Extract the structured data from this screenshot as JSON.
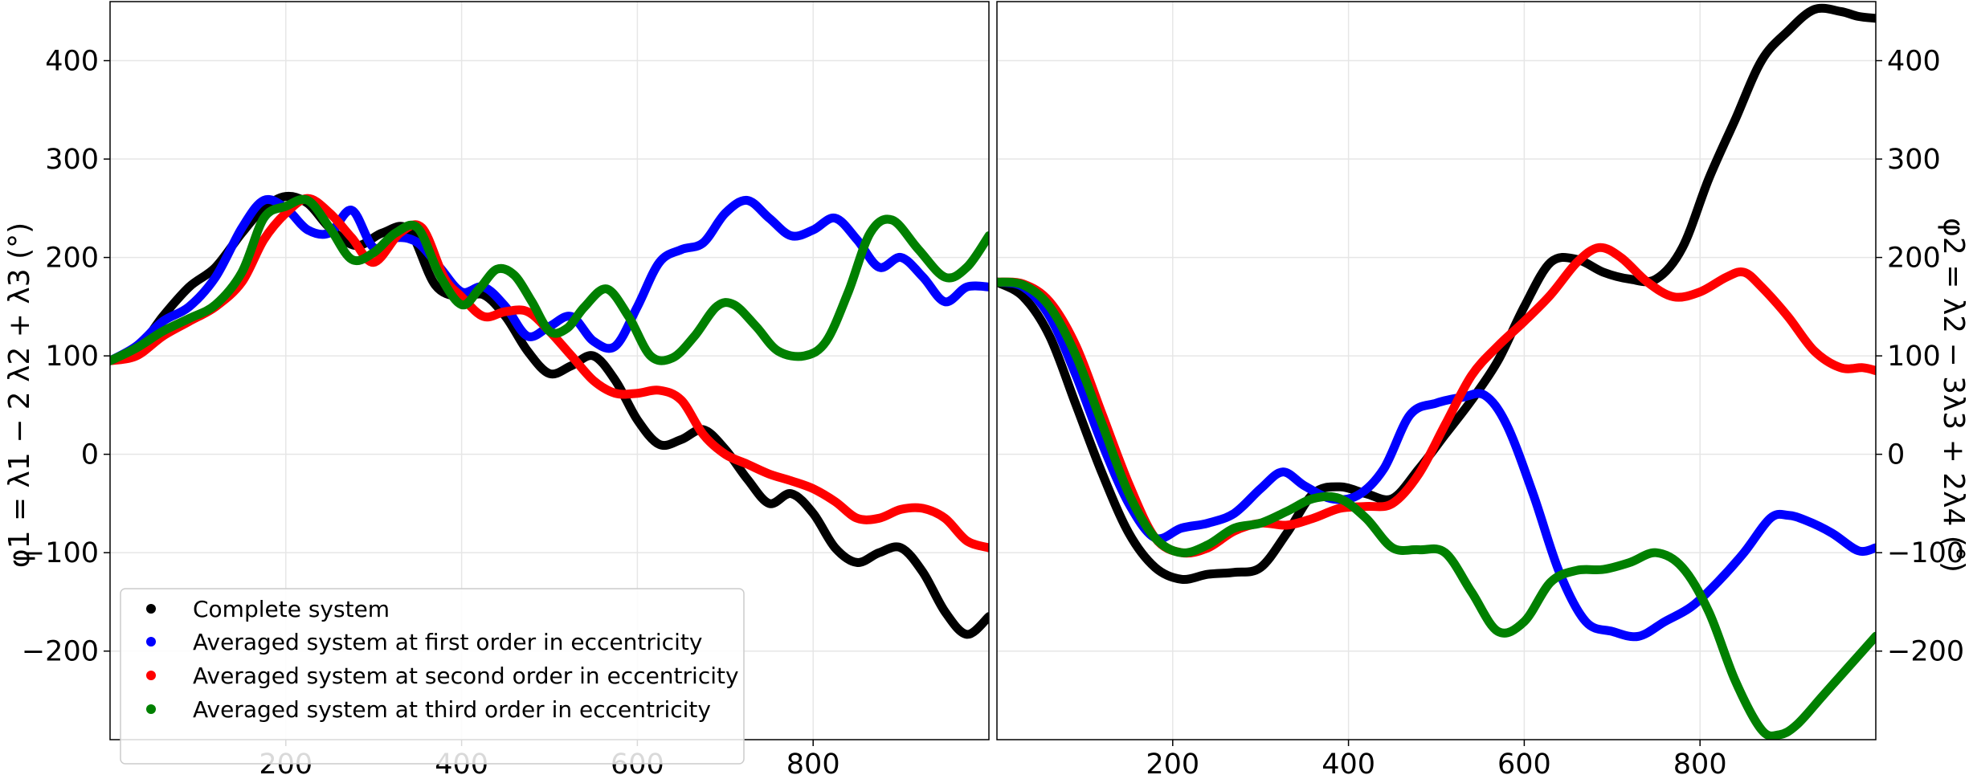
{
  "chart_data": [
    {
      "type": "line",
      "panel": "left",
      "ylabel": "φ1 = λ1 − 2 λ2 + λ3 (°)",
      "xlim": [
        0,
        1000
      ],
      "ylim": [
        -290,
        460
      ],
      "xticks": [
        200,
        400,
        600,
        800
      ],
      "xtick_labels": [
        "200",
        "400",
        "600",
        "800"
      ],
      "yticks": [
        400,
        300,
        200,
        100,
        0,
        -100,
        -200
      ],
      "ytick_labels": [
        "400",
        "300",
        "200",
        "100",
        "0",
        "−100",
        "−200"
      ],
      "grid": true,
      "legend_position": "bottom-left",
      "series": [
        {
          "name": "Complete system",
          "color": "#000000",
          "x": [
            0,
            30,
            60,
            90,
            120,
            150,
            175,
            200,
            225,
            250,
            280,
            310,
            340,
            370,
            400,
            425,
            450,
            475,
            500,
            525,
            550,
            575,
            600,
            625,
            650,
            675,
            700,
            725,
            750,
            775,
            800,
            825,
            850,
            875,
            900,
            925,
            950,
            975,
            1000
          ],
          "y": [
            95,
            105,
            140,
            170,
            190,
            225,
            250,
            262,
            255,
            230,
            212,
            225,
            228,
            172,
            160,
            162,
            140,
            105,
            82,
            90,
            100,
            75,
            35,
            10,
            15,
            25,
            5,
            -25,
            -50,
            -40,
            -60,
            -95,
            -110,
            -100,
            -95,
            -120,
            -160,
            -183,
            -165
          ]
        },
        {
          "name": "Averaged system at first order in eccentricity",
          "color": "#0000ff",
          "x": [
            0,
            30,
            60,
            90,
            120,
            150,
            175,
            200,
            225,
            250,
            275,
            300,
            325,
            350,
            375,
            400,
            425,
            450,
            475,
            500,
            525,
            550,
            575,
            600,
            625,
            650,
            675,
            700,
            725,
            750,
            775,
            800,
            825,
            850,
            875,
            900,
            925,
            950,
            975,
            1000
          ],
          "y": [
            95,
            110,
            135,
            150,
            180,
            230,
            258,
            250,
            228,
            225,
            248,
            210,
            220,
            215,
            190,
            165,
            170,
            150,
            120,
            130,
            140,
            115,
            110,
            150,
            195,
            208,
            215,
            245,
            258,
            240,
            222,
            228,
            240,
            218,
            190,
            200,
            180,
            155,
            170,
            170
          ]
        },
        {
          "name": "Averaged system at second order in eccentricity",
          "color": "#ff0000",
          "x": [
            0,
            30,
            60,
            90,
            120,
            150,
            175,
            200,
            225,
            250,
            275,
            300,
            330,
            355,
            380,
            400,
            425,
            450,
            475,
            500,
            525,
            550,
            575,
            600,
            625,
            650,
            675,
            700,
            725,
            750,
            775,
            800,
            825,
            850,
            875,
            900,
            925,
            950,
            975,
            1000
          ],
          "y": [
            95,
            100,
            120,
            135,
            150,
            175,
            218,
            245,
            260,
            245,
            220,
            195,
            225,
            230,
            180,
            160,
            140,
            145,
            145,
            125,
            100,
            75,
            62,
            62,
            65,
            55,
            20,
            0,
            -10,
            -20,
            -27,
            -35,
            -48,
            -65,
            -65,
            -56,
            -55,
            -65,
            -88,
            -95
          ]
        },
        {
          "name": "Averaged system at third order in eccentricity",
          "color": "#008000",
          "x": [
            0,
            30,
            60,
            90,
            120,
            150,
            175,
            200,
            225,
            250,
            275,
            300,
            325,
            350,
            375,
            400,
            420,
            440,
            460,
            480,
            500,
            520,
            540,
            565,
            590,
            615,
            640,
            665,
            690,
            710,
            735,
            760,
            790,
            815,
            840,
            865,
            890,
            920,
            950,
            975,
            1000
          ],
          "y": [
            95,
            108,
            125,
            138,
            152,
            185,
            240,
            252,
            258,
            230,
            198,
            205,
            225,
            230,
            182,
            152,
            168,
            188,
            182,
            155,
            125,
            128,
            150,
            168,
            140,
            100,
            98,
            120,
            150,
            152,
            130,
            105,
            100,
            115,
            165,
            225,
            238,
            208,
            180,
            190,
            222
          ]
        }
      ]
    },
    {
      "type": "line",
      "panel": "right",
      "ylabel": "φ2 = λ2 − 3λ3 + 2λ4 (°)",
      "xlim": [
        0,
        1000
      ],
      "ylim": [
        -290,
        460
      ],
      "xticks": [
        200,
        400,
        600,
        800
      ],
      "xtick_labels": [
        "200",
        "400",
        "600",
        "800"
      ],
      "yticks": [
        400,
        300,
        200,
        100,
        0,
        -100,
        -200
      ],
      "ytick_labels": [
        "400",
        "300",
        "200",
        "100",
        "0",
        "−100",
        "−200"
      ],
      "grid": true,
      "series": [
        {
          "name": "Complete system",
          "color": "#000000",
          "x": [
            0,
            30,
            60,
            90,
            120,
            150,
            180,
            210,
            240,
            270,
            300,
            330,
            360,
            390,
            420,
            450,
            480,
            510,
            540,
            570,
            600,
            630,
            660,
            690,
            720,
            750,
            780,
            810,
            840,
            870,
            900,
            930,
            960,
            980,
            1000
          ],
          "y": [
            175,
            160,
            120,
            50,
            -20,
            -80,
            -115,
            -127,
            -122,
            -120,
            -115,
            -80,
            -40,
            -33,
            -40,
            -45,
            -15,
            20,
            55,
            95,
            150,
            195,
            198,
            185,
            178,
            178,
            210,
            280,
            340,
            400,
            430,
            452,
            450,
            445,
            443
          ]
        },
        {
          "name": "Averaged system at first order in eccentricity",
          "color": "#0000ff",
          "x": [
            0,
            30,
            60,
            90,
            120,
            150,
            180,
            210,
            240,
            270,
            300,
            325,
            350,
            380,
            410,
            440,
            470,
            500,
            530,
            555,
            580,
            610,
            640,
            670,
            700,
            730,
            760,
            790,
            820,
            850,
            880,
            900,
            920,
            950,
            980,
            1000
          ],
          "y": [
            175,
            170,
            140,
            80,
            10,
            -50,
            -85,
            -75,
            -70,
            -60,
            -35,
            -18,
            -32,
            -45,
            -42,
            -15,
            40,
            52,
            58,
            60,
            30,
            -40,
            -120,
            -170,
            -180,
            -185,
            -170,
            -155,
            -130,
            -100,
            -65,
            -62,
            -67,
            -80,
            -98,
            -95
          ]
        },
        {
          "name": "Averaged system at second order in eccentricity",
          "color": "#ff0000",
          "x": [
            0,
            30,
            60,
            90,
            120,
            150,
            180,
            210,
            240,
            270,
            300,
            330,
            360,
            390,
            420,
            450,
            480,
            510,
            540,
            570,
            600,
            630,
            660,
            685,
            710,
            740,
            770,
            800,
            830,
            850,
            870,
            900,
            930,
            960,
            985,
            1000
          ],
          "y": [
            175,
            173,
            155,
            110,
            40,
            -30,
            -85,
            -100,
            -95,
            -78,
            -70,
            -72,
            -65,
            -55,
            -53,
            -50,
            -20,
            30,
            80,
            110,
            135,
            162,
            195,
            210,
            200,
            175,
            160,
            165,
            180,
            185,
            170,
            140,
            105,
            88,
            88,
            85
          ]
        },
        {
          "name": "Averaged system at third order in eccentricity",
          "color": "#008000",
          "x": [
            0,
            30,
            60,
            90,
            120,
            150,
            180,
            210,
            240,
            270,
            300,
            330,
            360,
            390,
            420,
            450,
            480,
            510,
            540,
            570,
            600,
            630,
            660,
            690,
            720,
            750,
            780,
            810,
            840,
            870,
            890,
            910,
            940,
            970,
            1000
          ],
          "y": [
            175,
            172,
            150,
            100,
            30,
            -40,
            -85,
            -100,
            -92,
            -75,
            -70,
            -58,
            -45,
            -45,
            -65,
            -95,
            -97,
            -100,
            -140,
            -180,
            -170,
            -130,
            -118,
            -117,
            -110,
            -100,
            -115,
            -160,
            -230,
            -280,
            -285,
            -275,
            -245,
            -215,
            -185
          ]
        }
      ]
    }
  ]
}
